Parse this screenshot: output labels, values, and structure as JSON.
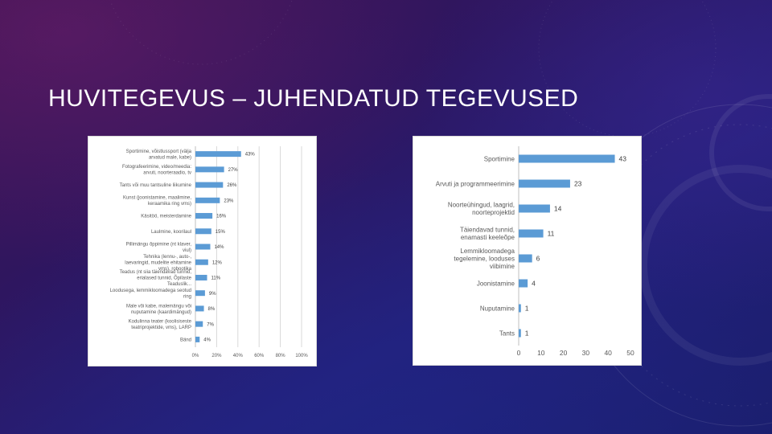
{
  "slide": {
    "title": "HUVITEGEVUS – JUHENDATUD TEGEVUSED"
  },
  "colors": {
    "bar": "#5b9bd5",
    "panel_bg": "#ffffff",
    "title": "#ffffff"
  },
  "chart_data": [
    {
      "type": "bar",
      "orientation": "horizontal",
      "categories": [
        "Sportimine, võistlussport (välja arvatud male, kabe)",
        "Fotografeerimine, video/meedia: arvuti, noorteraadio, tv",
        "Tants või muu tantsuline liikumine",
        "Kunst (joonistamine, maalimine, keraamika ring vms)",
        "Käsitöö, meisterdamine",
        "Laulmine, koorilaul",
        "Pillimängu õppimine (nt klaver, viul)",
        "Tehnika (lennu-, auto-, laevaringid, mudelite ehitamine vms), robootika",
        "Teadus (nt siia täiendavad tunnid, erialased tunnid, Õpilaste Teaduslik...",
        "Loodusega, lemmikloomadega seotud ring",
        "Male või kabe, malemängu või nuputamine (kaardimängud)",
        "Kodulinna teater (koolisiseste teatriprojektide, vms), LARP",
        "Bänd"
      ],
      "values": [
        43,
        27,
        26,
        23,
        16,
        15,
        14,
        12,
        11,
        9,
        8,
        7,
        4
      ],
      "value_labels": [
        "43%",
        "27%",
        "26%",
        "23%",
        "16%",
        "15%",
        "14%",
        "12%",
        "11%",
        "9%",
        "8%",
        "7%",
        "4%"
      ],
      "xlim": [
        0,
        100
      ],
      "x_ticks": [
        0,
        20,
        40,
        60,
        80,
        100
      ],
      "x_tick_labels": [
        "0%",
        "20%",
        "40%",
        "60%",
        "80%",
        "100%"
      ],
      "grid": true,
      "legend": "none"
    },
    {
      "type": "bar",
      "orientation": "horizontal",
      "categories": [
        "Sportimine",
        "Arvuti ja programmeerimine",
        "Noorteühingud, laagrid, noorteprojektid",
        "Täiendavad tunnid, enamasti keeleõpe",
        "Lemmikloomadega tegelemine, looduses viibimine",
        "Joonistamine",
        "Nuputamine",
        "Tants"
      ],
      "values": [
        43,
        23,
        14,
        11,
        6,
        4,
        1,
        1
      ],
      "value_labels": [
        "43",
        "23",
        "14",
        "11",
        "6",
        "4",
        "1",
        "1"
      ],
      "xlim": [
        0,
        50
      ],
      "x_ticks": [
        0,
        10,
        20,
        30,
        40,
        50
      ],
      "x_tick_labels": [
        "0",
        "10",
        "20",
        "30",
        "40",
        "50"
      ],
      "grid": false,
      "legend": "none"
    }
  ]
}
